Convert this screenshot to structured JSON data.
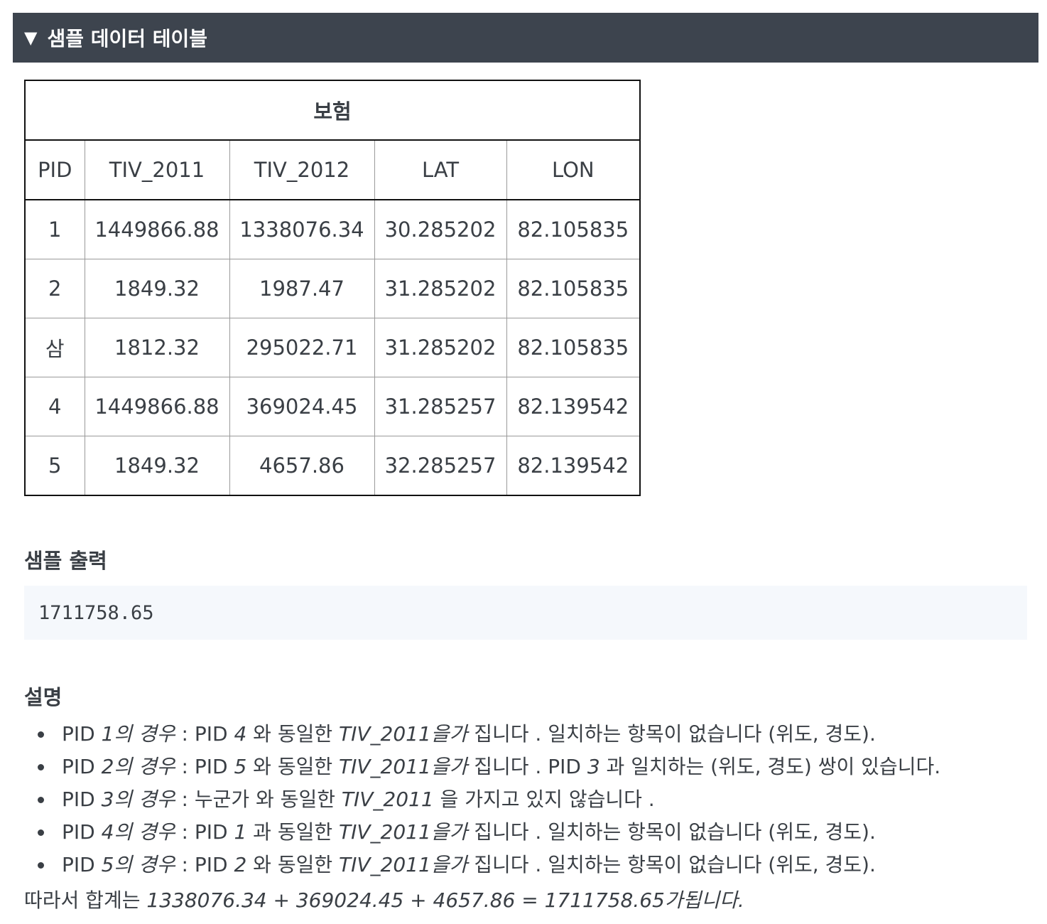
{
  "header": {
    "caret": "▼",
    "title": "샘플 데이터 테이블"
  },
  "table": {
    "caption": "보험",
    "columns": [
      "PID",
      "TIV_2011",
      "TIV_2012",
      "LAT",
      "LON"
    ],
    "rows": [
      [
        "1",
        "1449866.88",
        "1338076.34",
        "30.285202",
        "82.105835"
      ],
      [
        "2",
        "1849.32",
        "1987.47",
        "31.285202",
        "82.105835"
      ],
      [
        "삼",
        "1812.32",
        "295022.71",
        "31.285202",
        "82.105835"
      ],
      [
        "4",
        "1449866.88",
        "369024.45",
        "31.285257",
        "82.139542"
      ],
      [
        "5",
        "1849.32",
        "4657.86",
        "32.285257",
        "82.139542"
      ]
    ]
  },
  "output": {
    "heading": "샘플 출력",
    "value": "1711758.65"
  },
  "explanation": {
    "heading": "설명",
    "items": [
      {
        "a": "PID ",
        "b": "1의 경우",
        "c": " : PID ",
        "d": "4",
        "e": " 와 동일한 ",
        "f": "TIV_2011을가",
        "g": " 집니다 . 일치하는 항목이 없습니다 (위도, 경도)."
      },
      {
        "a": "PID ",
        "b": "2의 경우",
        "c": " : PID ",
        "d": "5",
        "e": " 와 동일한 ",
        "f": "TIV_2011을가",
        "g": " 집니다 . PID ",
        "h": "3",
        "i": " 과 일치하는 (위도, 경도) 쌍이  있습니다."
      },
      {
        "a": "PID ",
        "b": "3의 경우",
        "c": " : 누군가 와 동일한 ",
        "f": "TIV_2011",
        "g": " 을 가지고 있지 않습니다 ."
      },
      {
        "a": "PID ",
        "b": "4의 경우",
        "c": " : PID ",
        "d": "1",
        "e": " 과 동일한 ",
        "f": "TIV_2011을가",
        "g": " 집니다 . 일치하는 항목이 없습니다 (위도, 경도)."
      },
      {
        "a": "PID ",
        "b": "5의 경우",
        "c": " : PID ",
        "d": "2",
        "e": " 와 동일한 ",
        "f": "TIV_2011을가",
        "g": " 집니다 . 일치하는 항목이 없습니다 (위도, 경도)."
      }
    ],
    "summary_prefix": "따라서 합계는 ",
    "summary_formula": "1338076.34 + 369024.45 + 4657.86 = 1711758.65가됩니다."
  }
}
